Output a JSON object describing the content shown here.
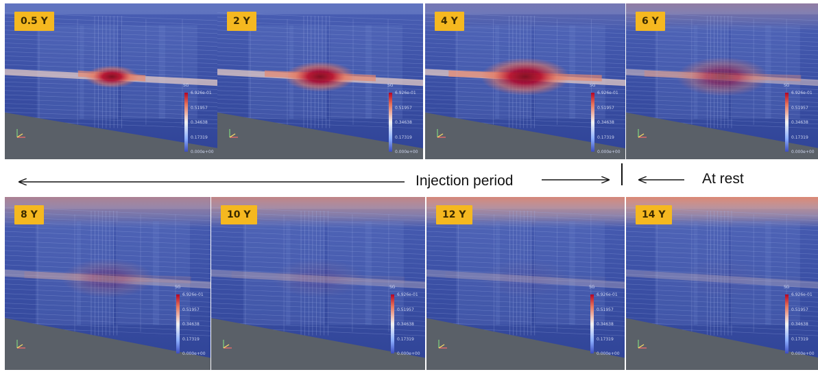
{
  "panels": [
    {
      "label": "0.5 Y",
      "intensity": 1.0,
      "spread": 0.35,
      "top_plume": 0.0
    },
    {
      "label": "2 Y",
      "intensity": 1.0,
      "spread": 0.6,
      "top_plume": 0.0
    },
    {
      "label": "4 Y",
      "intensity": 1.0,
      "spread": 0.85,
      "top_plume": 0.15
    },
    {
      "label": "6 Y",
      "intensity": 0.55,
      "spread": 0.9,
      "top_plume": 0.35
    },
    {
      "label": "8 Y",
      "intensity": 0.25,
      "spread": 0.9,
      "top_plume": 0.55
    },
    {
      "label": "10 Y",
      "intensity": 0.1,
      "spread": 0.9,
      "top_plume": 0.7
    },
    {
      "label": "12 Y",
      "intensity": 0.05,
      "spread": 0.9,
      "top_plume": 0.85
    },
    {
      "label": "14 Y",
      "intensity": 0.03,
      "spread": 0.9,
      "top_plume": 0.9
    }
  ],
  "legend": {
    "title": "SG",
    "ticks": [
      "6.926e-01",
      "0.51957",
      "0.34638",
      "0.17319",
      "0.000e+00"
    ]
  },
  "annotations": {
    "injection_period": "Injection period",
    "at_rest": "At rest"
  },
  "colors": {
    "badge": "#f5b820",
    "background_blue": "#3f55a8",
    "ground": "#5a6068",
    "plume_hot": "#b40426"
  }
}
